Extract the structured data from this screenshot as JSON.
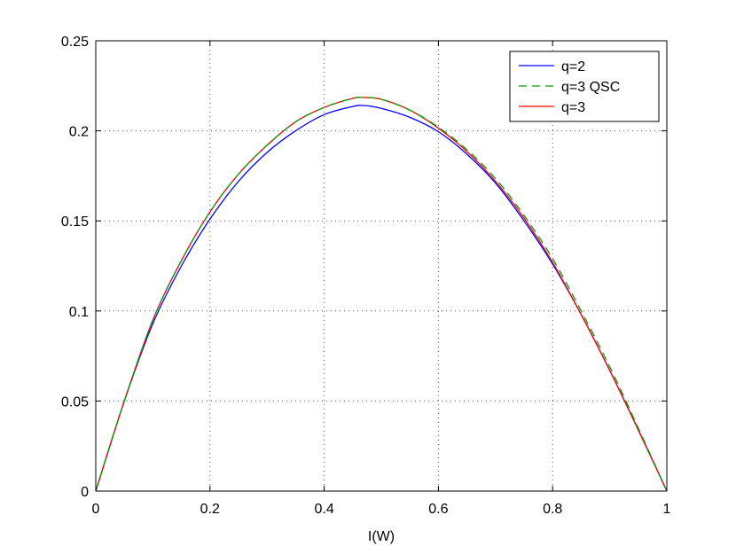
{
  "chart_data": {
    "type": "line",
    "title": "",
    "xlabel": "I(W)",
    "ylabel": "",
    "xlim": [
      0,
      1
    ],
    "ylim": [
      0,
      0.25
    ],
    "xticks": [
      "0",
      "0.2",
      "0.4",
      "0.6",
      "0.8",
      "1"
    ],
    "yticks": [
      "0",
      "0.05",
      "0.1",
      "0.15",
      "0.2",
      "0.25"
    ],
    "grid": true,
    "legend_position": "top-right",
    "series": [
      {
        "name": "q=2",
        "color": "#0000ff",
        "style": "solid",
        "x": [
          0,
          0.05,
          0.1,
          0.15,
          0.2,
          0.25,
          0.3,
          0.35,
          0.4,
          0.45,
          0.47,
          0.5,
          0.55,
          0.6,
          0.65,
          0.7,
          0.75,
          0.8,
          0.85,
          0.9,
          0.95,
          1
        ],
        "y": [
          0,
          0.05,
          0.093,
          0.125,
          0.151,
          0.172,
          0.188,
          0.2,
          0.209,
          0.2135,
          0.214,
          0.2125,
          0.2075,
          0.1995,
          0.187,
          0.171,
          0.15,
          0.126,
          0.098,
          0.067,
          0.034,
          0
        ]
      },
      {
        "name": "q=3 QSC",
        "color": "#00a000",
        "style": "dashed",
        "x": [
          0,
          0.05,
          0.1,
          0.15,
          0.2,
          0.25,
          0.3,
          0.35,
          0.4,
          0.45,
          0.47,
          0.5,
          0.55,
          0.6,
          0.65,
          0.7,
          0.75,
          0.8,
          0.85,
          0.9,
          0.95,
          1
        ],
        "y": [
          0,
          0.05,
          0.095,
          0.128,
          0.155,
          0.176,
          0.192,
          0.205,
          0.213,
          0.218,
          0.2185,
          0.2175,
          0.2115,
          0.202,
          0.1895,
          0.1735,
          0.153,
          0.129,
          0.1,
          0.069,
          0.035,
          0
        ]
      },
      {
        "name": "q=3",
        "color": "#ff0000",
        "style": "solid",
        "x": [
          0,
          0.05,
          0.1,
          0.15,
          0.2,
          0.25,
          0.3,
          0.35,
          0.4,
          0.45,
          0.47,
          0.5,
          0.55,
          0.6,
          0.65,
          0.7,
          0.75,
          0.8,
          0.85,
          0.9,
          0.95,
          1
        ],
        "y": [
          0,
          0.05,
          0.095,
          0.128,
          0.155,
          0.176,
          0.192,
          0.205,
          0.213,
          0.218,
          0.2185,
          0.2175,
          0.2115,
          0.2015,
          0.1885,
          0.172,
          0.1515,
          0.127,
          0.098,
          0.067,
          0.034,
          0
        ]
      }
    ]
  }
}
